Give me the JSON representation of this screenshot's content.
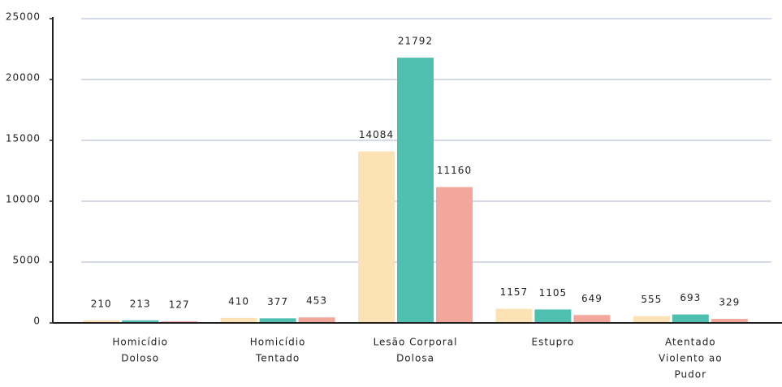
{
  "chart_data": {
    "type": "bar",
    "categories": [
      [
        "Homicídio",
        "Doloso"
      ],
      [
        "Homicídio",
        "Tentado"
      ],
      [
        "Lesão Corporal",
        "Dolosa"
      ],
      [
        "Estupro"
      ],
      [
        "Atentado",
        "Violento ao",
        "Pudor"
      ]
    ],
    "series": [
      {
        "color": "#fde2b6",
        "values": [
          210,
          410,
          14084,
          1157,
          555
        ]
      },
      {
        "color": "#4fbfb0",
        "values": [
          213,
          377,
          21792,
          1105,
          693
        ]
      },
      {
        "color": "#f3a69b",
        "values": [
          127,
          453,
          11160,
          649,
          329
        ]
      }
    ],
    "ylim": [
      0,
      25000
    ],
    "yticks": [
      0,
      5000,
      10000,
      15000,
      20000,
      25000
    ],
    "grid": true
  }
}
